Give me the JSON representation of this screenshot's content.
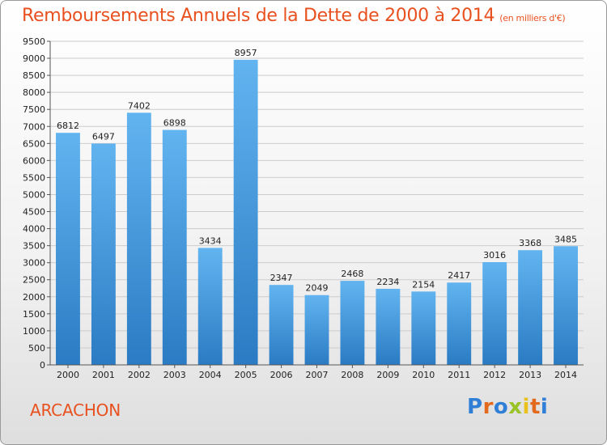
{
  "colors": {
    "title": "#e8511f",
    "bar_light": "#62b4f0",
    "bar_dark": "#2a7bc3",
    "grid": "#cccccc",
    "axis_text": "#222222"
  },
  "city": "ARCACHON",
  "logo": [
    "P",
    "r",
    "o",
    "x",
    "i",
    "t",
    "i"
  ],
  "chart_data": {
    "type": "bar",
    "title": "Remboursements Annuels de la Dette de 2000 à 2014",
    "unit_label": "(en milliers d'€)",
    "categories": [
      "2000",
      "2001",
      "2002",
      "2003",
      "2004",
      "2005",
      "2006",
      "2007",
      "2008",
      "2009",
      "2010",
      "2011",
      "2012",
      "2013",
      "2014"
    ],
    "values": [
      6812,
      6497,
      7402,
      6898,
      3434,
      8957,
      2347,
      2049,
      2468,
      2234,
      2154,
      2417,
      3016,
      3368,
      3485
    ],
    "ylim": [
      0,
      9500
    ],
    "yticks": [
      0,
      500,
      1000,
      1500,
      2000,
      2500,
      3000,
      3500,
      4000,
      4500,
      5000,
      5500,
      6000,
      6500,
      7000,
      7500,
      8000,
      8500,
      9000,
      9500
    ],
    "grid": true,
    "xlabel": "",
    "ylabel": ""
  }
}
